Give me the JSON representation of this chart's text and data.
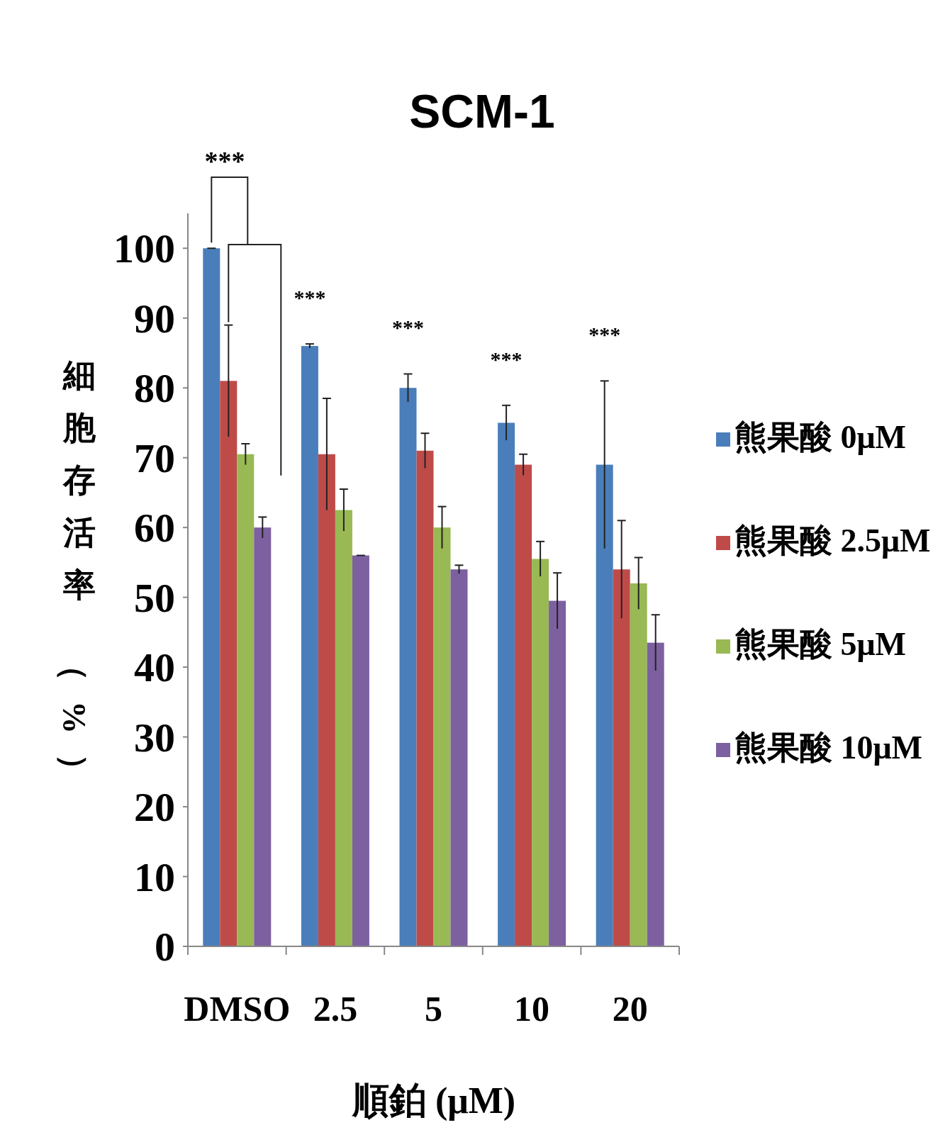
{
  "chart_data": {
    "type": "bar",
    "title": "SCM-1",
    "xlabel": "順鉑 (μM)",
    "ylabel": "細胞存活率（%）",
    "categories": [
      "DMSO",
      "2.5",
      "5",
      "10",
      "20"
    ],
    "series": [
      {
        "name": "熊果酸 0μM",
        "color": "#4a7ebb",
        "values": [
          100,
          86,
          80,
          75,
          69
        ],
        "errors": [
          0,
          0.3,
          2,
          2.5,
          12
        ]
      },
      {
        "name": "熊果酸 2.5μM",
        "color": "#be4b48",
        "values": [
          81,
          70.5,
          71,
          69,
          54
        ],
        "errors": [
          8,
          8,
          2.5,
          1.5,
          7
        ]
      },
      {
        "name": "熊果酸 5μM",
        "color": "#98b954",
        "values": [
          70.5,
          62.5,
          60,
          55.5,
          52
        ],
        "errors": [
          1.5,
          3,
          3,
          2.5,
          3.7
        ]
      },
      {
        "name": "熊果酸 10μM",
        "color": "#7d60a0",
        "values": [
          60,
          56,
          54,
          49.5,
          43.5
        ],
        "errors": [
          1.5,
          0,
          0.6,
          4,
          4
        ]
      }
    ],
    "ylim": [
      0,
      105
    ],
    "yticks": [
      0,
      10,
      20,
      30,
      40,
      50,
      60,
      70,
      80,
      90,
      100
    ],
    "grid": false,
    "legend": "right",
    "annotations": [
      "***",
      "***",
      "***",
      "***",
      "***"
    ]
  }
}
